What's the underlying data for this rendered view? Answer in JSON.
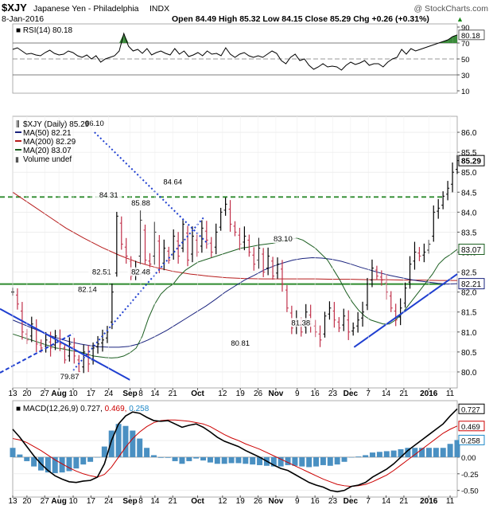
{
  "header": {
    "symbol": "$XJY",
    "name": "Japanese Yen - Philadelphia",
    "exchange": "INDX",
    "watermark": "@ StockCharts.com",
    "date": "8-Jan-2016",
    "ohlc": "Open 84.49  High 85.32  Low 84.15  Close 85.29  Chg +0.26 (+0.31%)",
    "ohlc_arrow": "▲"
  },
  "rsi": {
    "label": "RSI(14) 80.18",
    "ticks": [
      "90",
      "80.18",
      "70",
      "50",
      "30",
      "10"
    ],
    "tick_values": [
      90,
      80.18,
      70,
      50,
      30,
      10
    ],
    "range": [
      10,
      90
    ],
    "values": [
      62,
      64,
      60,
      56,
      57,
      55,
      54,
      58,
      61,
      57,
      55,
      56,
      60,
      58,
      54,
      52,
      55,
      50,
      54,
      46,
      50,
      52,
      54,
      60,
      82,
      66,
      60,
      62,
      57,
      63,
      55,
      58,
      60,
      57,
      55,
      63,
      56,
      60,
      53,
      55,
      58,
      54,
      60,
      56,
      57,
      54,
      64,
      56,
      52,
      56,
      58,
      54,
      52,
      54,
      52,
      56,
      60,
      57,
      48,
      44,
      52,
      56,
      48,
      50,
      42,
      37,
      40,
      44,
      40,
      41,
      40,
      36,
      42,
      46,
      43,
      45,
      48,
      42,
      44,
      44,
      40,
      46,
      50,
      52,
      62,
      56,
      63,
      60,
      62,
      64,
      66,
      68,
      70,
      72,
      74,
      78,
      80.18
    ],
    "colors": {
      "line": "#000000",
      "fill_over": "#3a8a3a",
      "fill_under": "#cc3333"
    }
  },
  "price": {
    "legend": [
      {
        "label": "$XJY (Daily) 85.29",
        "color": "#000000"
      },
      {
        "label": "MA(50) 82.21",
        "color": "#1a237e"
      },
      {
        "label": "MA(200) 82.29",
        "color": "#b71c1c"
      },
      {
        "label": "MA(20) 83.07",
        "color": "#1b5e20"
      },
      {
        "label": "Volume undef",
        "color": "#555555"
      }
    ],
    "ticks": [
      "86.0",
      "85.5",
      "85.0",
      "84.5",
      "84.0",
      "83.5",
      "83.0",
      "82.5",
      "82.0",
      "81.5",
      "81.0",
      "80.5",
      "80.0"
    ],
    "tick_values": [
      86.0,
      85.5,
      85.0,
      84.5,
      84.0,
      83.5,
      83.0,
      82.5,
      82.0,
      81.5,
      81.0,
      80.5,
      80.0
    ],
    "badges": [
      {
        "label": "85.29",
        "value": 85.29,
        "bg": "#ffffff",
        "fg": "#000000",
        "border": "#000000",
        "bold": true
      },
      {
        "label": "83.07",
        "value": 83.07,
        "bg": "#ffffff",
        "fg": "#000000",
        "border": "#1b5e20",
        "bold": false
      },
      {
        "label": "82.21",
        "value": 82.21,
        "bg": "#ffffff",
        "fg": "#000000",
        "border": "#1a237e",
        "bold": false
      }
    ],
    "annotations": [
      {
        "label": "86.10",
        "value": 86.1,
        "day": 23
      },
      {
        "label": "84.31",
        "value": 84.31,
        "day": 27
      },
      {
        "label": "85.88",
        "value": 84.11,
        "day": 36
      },
      {
        "label": "84.64",
        "value": 84.64,
        "day": 45
      },
      {
        "label": "83.10",
        "value": 83.21,
        "day": 76
      },
      {
        "label": "82.51",
        "value": 82.38,
        "day": 25
      },
      {
        "label": "82.48",
        "value": 82.38,
        "day": 36
      },
      {
        "label": "82.14",
        "value": 81.94,
        "day": 21
      },
      {
        "label": "80.81",
        "value": 80.6,
        "day": 64
      },
      {
        "label": "81.38",
        "value": 81.11,
        "day": 81
      },
      {
        "label": "79.87",
        "value": 79.76,
        "day": 16
      }
    ]
  },
  "macd": {
    "label": "MACD(12,26,9) 0.727, 0.469, 0.258",
    "label_parts": [
      {
        "text": "MACD(12,26,9) 0.727, ",
        "color": "#000000"
      },
      {
        "text": "0.469, ",
        "color": "#cc0000"
      },
      {
        "text": "0.258",
        "color": "#1e88c8"
      }
    ],
    "ticks": [
      "0.727",
      "0.469",
      "0.258",
      "0.25",
      "0.00",
      "-0.25",
      "-0.50"
    ],
    "badge_values": [
      0.727,
      0.469,
      0.258
    ],
    "tick_values": [
      0.25,
      0.0,
      -0.25,
      -0.5
    ],
    "range": [
      -0.6,
      0.85
    ],
    "colors": {
      "macd": "#000000",
      "signal": "#cc0000",
      "hist": "#4a90c2"
    }
  },
  "xaxis": {
    "labels": [
      {
        "text": "13",
        "day": 0,
        "bold": false
      },
      {
        "text": "20",
        "day": 4,
        "bold": false
      },
      {
        "text": "27",
        "day": 9,
        "bold": false
      },
      {
        "text": "Aug",
        "day": 13,
        "bold": true
      },
      {
        "text": "10",
        "day": 17,
        "bold": false
      },
      {
        "text": "17",
        "day": 22,
        "bold": false
      },
      {
        "text": "24",
        "day": 27,
        "bold": false
      },
      {
        "text": "Sep",
        "day": 33,
        "bold": true
      },
      {
        "text": "8",
        "day": 36,
        "bold": false
      },
      {
        "text": "14",
        "day": 40,
        "bold": false
      },
      {
        "text": "21",
        "day": 45,
        "bold": false
      },
      {
        "text": "Oct",
        "day": 52,
        "bold": true
      },
      {
        "text": "12",
        "day": 59,
        "bold": false
      },
      {
        "text": "19",
        "day": 64,
        "bold": false
      },
      {
        "text": "26",
        "day": 69,
        "bold": false
      },
      {
        "text": "Nov",
        "day": 74,
        "bold": true
      },
      {
        "text": "9",
        "day": 80,
        "bold": false
      },
      {
        "text": "16",
        "day": 85,
        "bold": false
      },
      {
        "text": "23",
        "day": 90,
        "bold": false
      },
      {
        "text": "Dec",
        "day": 95,
        "bold": true
      },
      {
        "text": "7",
        "day": 100,
        "bold": false
      },
      {
        "text": "14",
        "day": 105,
        "bold": false
      },
      {
        "text": "21",
        "day": 110,
        "bold": false
      },
      {
        "text": "2016",
        "day": 117,
        "bold": true
      },
      {
        "text": "11",
        "day": 123,
        "bold": false
      }
    ]
  },
  "chart_data": {
    "type": "ohlc",
    "title": "$XJY Japanese Yen - Philadelphia INDX",
    "ylim": [
      79.6,
      86.4
    ],
    "days": [
      0,
      125
    ],
    "horizontal_lines": [
      {
        "value": 84.38,
        "color": "#2e8b2e",
        "style": "dashed"
      },
      {
        "value": 82.2,
        "color": "#2e8b2e",
        "style": "solid"
      }
    ],
    "trendlines": [
      {
        "from": [
          0,
          81.58
        ],
        "to": [
          33,
          79.8
        ],
        "color": "#1f3fd0",
        "style": "solid"
      },
      {
        "from": [
          0,
          79.98
        ],
        "to": [
          17,
          80.96
        ],
        "color": "#1f3fd0",
        "style": "dashed"
      },
      {
        "from": [
          23,
          86.0
        ],
        "to": [
          55,
          83.2
        ],
        "color": "#1f3fd0",
        "style": "dotted"
      },
      {
        "from": [
          17,
          80.04
        ],
        "to": [
          54,
          83.9
        ],
        "color": "#1f3fd0",
        "style": "dotted"
      },
      {
        "from": [
          96,
          80.62
        ],
        "to": [
          125,
          82.45
        ],
        "color": "#1f3fd0",
        "style": "solid"
      }
    ],
    "close": [
      82.0,
      81.7,
      81.0,
      80.8,
      81.2,
      80.7,
      80.6,
      80.8,
      80.6,
      80.9,
      80.7,
      80.3,
      80.7,
      80.4,
      80.0,
      80.5,
      80.2,
      80.6,
      80.7,
      80.8,
      81.0,
      82.0,
      83.9,
      83.2,
      82.9,
      82.4,
      82.6,
      83.8,
      82.8,
      82.7,
      83.5,
      82.6,
      83.1,
      82.8,
      83.4,
      82.9,
      83.7,
      82.8,
      83.4,
      83.0,
      83.6,
      83.3,
      83.0,
      83.5,
      84.0,
      84.2,
      83.7,
      83.5,
      83.2,
      83.4,
      83.0,
      82.7,
      83.1,
      82.5,
      82.9,
      82.4,
      82.7,
      82.2,
      81.6,
      81.1,
      81.3,
      81.0,
      81.5,
      81.2,
      81.0,
      80.8,
      81.4,
      81.6,
      81.3,
      81.1,
      81.4,
      81.0,
      81.1,
      81.3,
      81.5,
      82.2,
      82.6,
      82.4,
      82.3,
      82.0,
      81.6,
      81.3,
      81.6,
      82.1,
      82.7,
      83.0,
      82.9,
      83.0,
      83.2,
      84.0,
      84.1,
      84.4,
      84.6,
      85.0,
      85.29
    ],
    "ma20": [
      80.95,
      80.9,
      80.85,
      80.8,
      80.75,
      80.7,
      80.65,
      80.6,
      80.58,
      80.55,
      80.52,
      80.5,
      80.45,
      80.4,
      80.38,
      80.36,
      80.35,
      80.36,
      80.4,
      80.48,
      80.6,
      80.9,
      81.35,
      81.7,
      81.95,
      82.1,
      82.2,
      82.4,
      82.55,
      82.65,
      82.75,
      82.8,
      82.85,
      82.9,
      82.95,
      83.0,
      83.05,
      83.1,
      83.12,
      83.15,
      83.18,
      83.2,
      83.22,
      83.25,
      83.3,
      83.32,
      83.35,
      83.3,
      83.2,
      83.1,
      82.95,
      82.8,
      82.55,
      82.3,
      82.0,
      81.75,
      81.55,
      81.4,
      81.3,
      81.25,
      81.2,
      81.2,
      81.3,
      81.45,
      81.65,
      81.85,
      82.05,
      82.25,
      82.45,
      82.7,
      82.85,
      82.95,
      83.07
    ],
    "ma50": [
      81.3,
      81.2,
      81.1,
      81.0,
      80.9,
      80.82,
      80.75,
      80.7,
      80.66,
      80.63,
      80.62,
      80.62,
      80.64,
      80.7,
      80.8,
      80.92,
      81.05,
      81.2,
      81.35,
      81.5,
      81.65,
      81.82,
      82.0,
      82.15,
      82.3,
      82.42,
      82.55,
      82.65,
      82.73,
      82.8,
      82.84,
      82.86,
      82.85,
      82.82,
      82.77,
      82.7,
      82.62,
      82.55,
      82.48,
      82.42,
      82.37,
      82.32,
      82.28,
      82.25,
      82.22,
      82.2,
      82.21
    ],
    "ma200": [
      84.5,
      84.2,
      83.9,
      83.6,
      83.35,
      83.12,
      82.92,
      82.75,
      82.62,
      82.52,
      82.45,
      82.4,
      82.36,
      82.34,
      82.33,
      82.33,
      82.33,
      82.33,
      82.32,
      82.32,
      82.31,
      82.31,
      82.3,
      82.3,
      82.29,
      82.29
    ],
    "macd_line": [
      0.42,
      0.3,
      0.16,
      0.02,
      -0.1,
      -0.2,
      -0.28,
      -0.33,
      -0.37,
      -0.38,
      -0.36,
      -0.35,
      -0.3,
      -0.1,
      0.25,
      0.5,
      0.62,
      0.68,
      0.66,
      0.6,
      0.55,
      0.54,
      0.55,
      0.5,
      0.45,
      0.48,
      0.5,
      0.45,
      0.38,
      0.3,
      0.24,
      0.2,
      0.16,
      0.1,
      0.05,
      0.0,
      -0.06,
      -0.12,
      -0.17,
      -0.2,
      -0.26,
      -0.32,
      -0.38,
      -0.42,
      -0.45,
      -0.5,
      -0.52,
      -0.5,
      -0.44,
      -0.42,
      -0.38,
      -0.3,
      -0.24,
      -0.18,
      -0.1,
      0.0,
      0.1,
      0.18,
      0.26,
      0.34,
      0.42,
      0.5,
      0.62,
      0.727
    ],
    "signal_line": [
      0.28,
      0.26,
      0.22,
      0.16,
      0.1,
      0.03,
      -0.04,
      -0.1,
      -0.16,
      -0.21,
      -0.25,
      -0.28,
      -0.3,
      -0.26,
      -0.15,
      0.0,
      0.15,
      0.28,
      0.38,
      0.46,
      0.52,
      0.55,
      0.56,
      0.56,
      0.55,
      0.54,
      0.52,
      0.5,
      0.46,
      0.4,
      0.34,
      0.29,
      0.25,
      0.2,
      0.16,
      0.12,
      0.07,
      0.02,
      -0.03,
      -0.08,
      -0.13,
      -0.18,
      -0.23,
      -0.28,
      -0.33,
      -0.37,
      -0.41,
      -0.43,
      -0.44,
      -0.43,
      -0.41,
      -0.37,
      -0.32,
      -0.27,
      -0.2,
      -0.12,
      -0.04,
      0.04,
      0.12,
      0.2,
      0.28,
      0.36,
      0.42,
      0.469
    ]
  }
}
